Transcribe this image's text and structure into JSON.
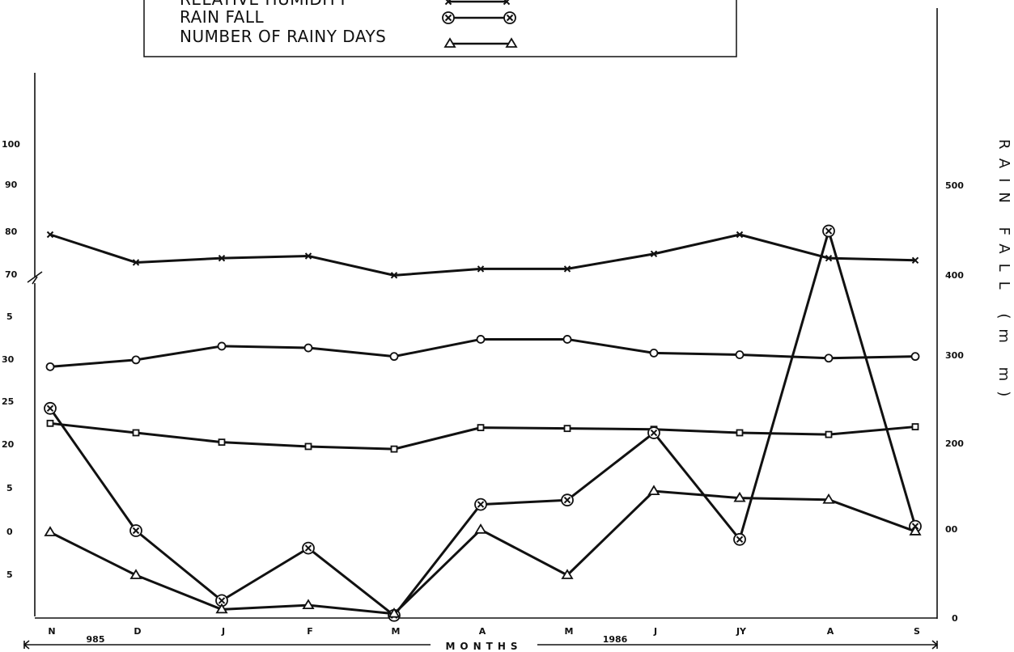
{
  "chart_data": {
    "type": "line",
    "legend": {
      "entries": [
        {
          "name": "RELATIVE HUMIDITY",
          "marker": "x"
        },
        {
          "name": "RAIN FALL",
          "marker": "circled-x"
        },
        {
          "name": "NUMBER OF RAINY DAYS",
          "marker": "triangle"
        }
      ],
      "placement": "top-left (cropped)"
    },
    "x": {
      "categories": [
        "N",
        "D",
        "J",
        "F",
        "M",
        "A",
        "M",
        "J",
        "JY",
        "A",
        "S"
      ],
      "title": "MONTHS",
      "year_labels": [
        "985",
        "1986"
      ]
    },
    "y_right": {
      "title": "RAIN FALL (m m)",
      "ticks": [
        "500",
        "400",
        "300",
        "200",
        "00",
        "0"
      ],
      "ylim": [
        0,
        560
      ]
    },
    "y_left_upper": {
      "ticks": [
        "100",
        "90",
        "80",
        "70"
      ],
      "range": [
        70,
        100
      ],
      "broken_axis": true
    },
    "y_left_lower": {
      "ticks": [
        "5",
        "30",
        "25",
        "20",
        "5",
        "0",
        "5"
      ]
    },
    "series": [
      {
        "name": "RELATIVE HUMIDITY",
        "marker": "x",
        "values": [
          80,
          73.5,
          74.5,
          75,
          70.5,
          72,
          72,
          75.5,
          80,
          74.5,
          74
        ]
      },
      {
        "name": "",
        "marker": "circle",
        "values": [
          29.4,
          30.2,
          31.8,
          31.6,
          30.6,
          32.6,
          32.6,
          31,
          30.8,
          30.4,
          30.6
        ]
      },
      {
        "name": "",
        "marker": "square",
        "values": [
          22.8,
          21.7,
          20.6,
          20.1,
          19.8,
          22.3,
          22.2,
          22.1,
          21.7,
          21.5,
          22.4
        ]
      },
      {
        "name": "RAIN FALL",
        "marker": "circled-x",
        "values": [
          240,
          100,
          20,
          80,
          3,
          130,
          135,
          212,
          90,
          443,
          105
        ]
      },
      {
        "name": "NUMBER OF RAINY DAYS",
        "marker": "triangle",
        "values": [
          10,
          5,
          1,
          1.5,
          0.5,
          10.3,
          5,
          14.8,
          14,
          13.8,
          10.1
        ]
      }
    ]
  }
}
